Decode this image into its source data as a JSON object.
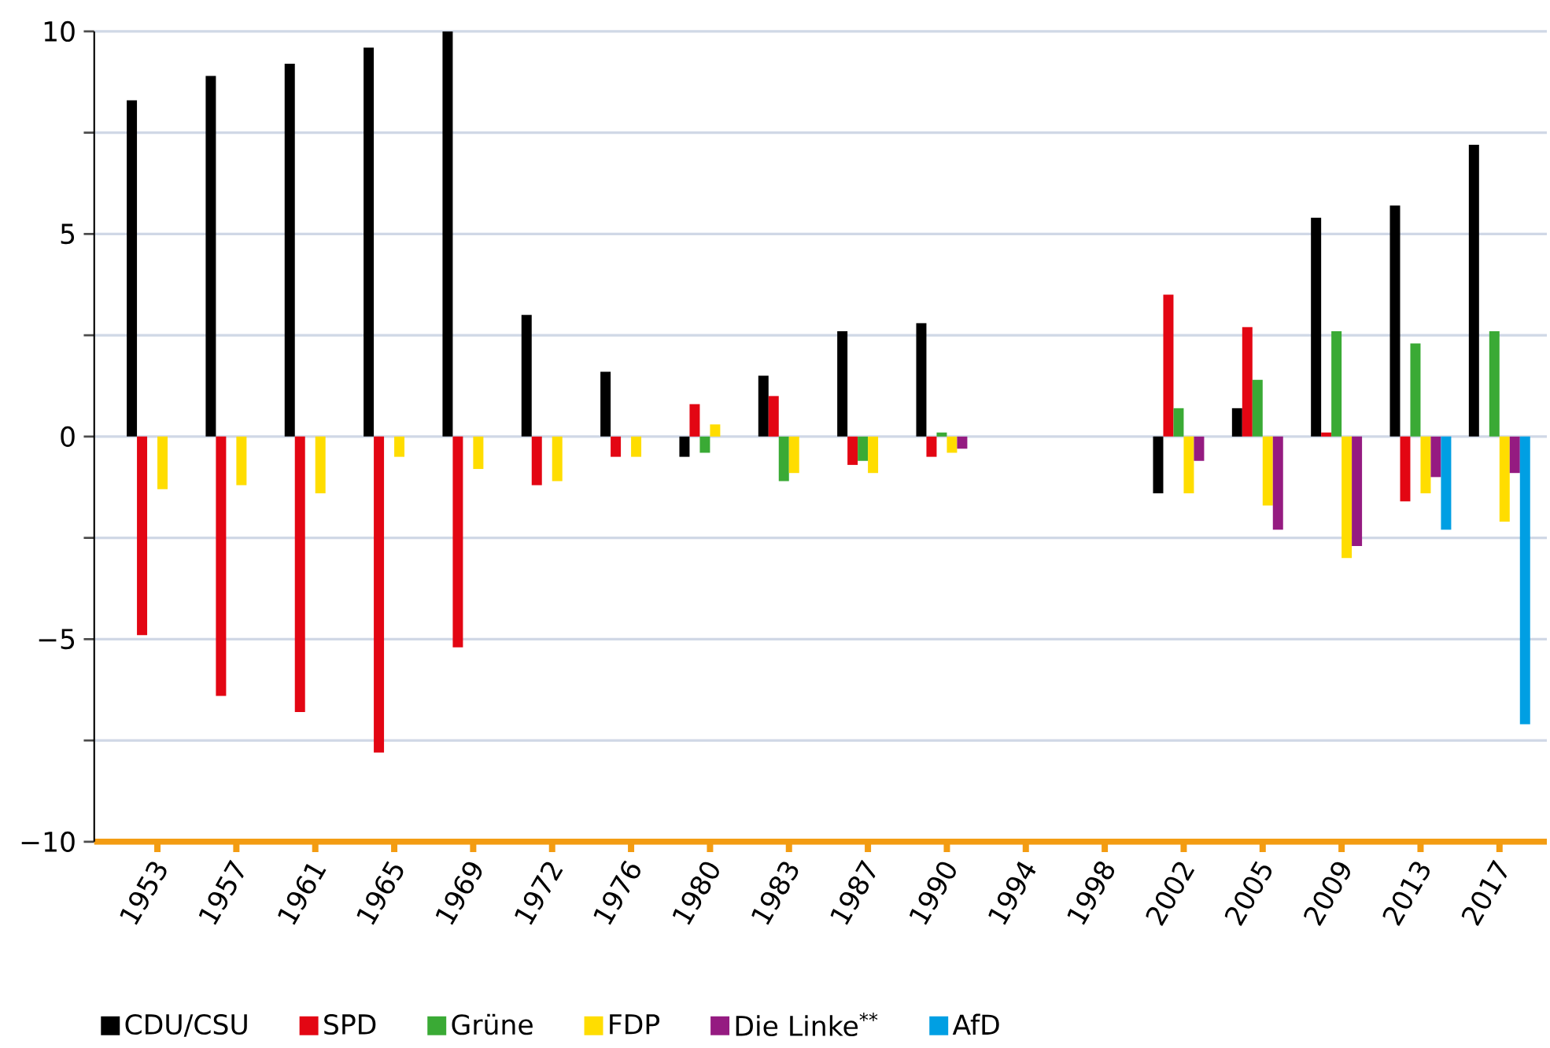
{
  "chart_data": {
    "type": "bar",
    "categories": [
      "1953",
      "1957",
      "1961",
      "1965",
      "1969",
      "1972",
      "1976",
      "1980",
      "1983",
      "1987",
      "1990",
      "1994",
      "1998",
      "2002",
      "2005",
      "2009",
      "2013",
      "2017"
    ],
    "series": [
      {
        "name": "CDU/CSU",
        "color": "#000000",
        "values": [
          8.3,
          8.9,
          9.2,
          9.6,
          10.0,
          3.0,
          1.6,
          -0.5,
          1.5,
          2.6,
          2.8,
          null,
          null,
          -1.4,
          0.7,
          5.4,
          5.7,
          7.2
        ]
      },
      {
        "name": "SPD",
        "color": "#e30613",
        "values": [
          -4.9,
          -6.4,
          -6.8,
          -7.8,
          -5.2,
          -1.2,
          -0.5,
          0.8,
          1.0,
          -0.7,
          -0.5,
          null,
          null,
          3.5,
          2.7,
          0.1,
          -1.6,
          0.0
        ]
      },
      {
        "name": "Grüne",
        "color": "#3aaa35",
        "values": [
          null,
          null,
          null,
          null,
          null,
          null,
          null,
          -0.4,
          -1.1,
          -0.6,
          0.1,
          null,
          null,
          0.7,
          1.4,
          2.6,
          2.3,
          2.6
        ]
      },
      {
        "name": "FDP",
        "color": "#ffdd00",
        "values": [
          -1.3,
          -1.2,
          -1.4,
          -0.5,
          -0.8,
          -1.1,
          -0.5,
          0.3,
          -0.9,
          -0.9,
          -0.4,
          null,
          null,
          -1.4,
          -1.7,
          -3.0,
          -1.4,
          -2.1
        ]
      },
      {
        "name": "Die Linke$^{**}$",
        "color": "#951b81",
        "values": [
          null,
          null,
          null,
          null,
          null,
          null,
          null,
          null,
          null,
          null,
          -0.3,
          null,
          null,
          -0.6,
          -2.3,
          -2.7,
          -1.0,
          -0.9
        ]
      },
      {
        "name": "AfD",
        "color": "#009fe3",
        "values": [
          null,
          null,
          null,
          null,
          null,
          null,
          null,
          null,
          null,
          null,
          null,
          null,
          null,
          null,
          null,
          null,
          -2.3,
          -7.1
        ]
      }
    ],
    "ylim": [
      -10,
      10
    ],
    "yticks": [
      10,
      {
        "value": 7.5,
        "label": null
      },
      5,
      {
        "value": 2.5,
        "label": null
      },
      0,
      {
        "value": -2.5,
        "label": null
      },
      {
        "value": -5,
        "label": "−5"
      },
      {
        "value": -7.5,
        "label": null
      },
      {
        "value": -10,
        "label": "−10"
      }
    ],
    "grid": "y",
    "legend": "bottom"
  }
}
